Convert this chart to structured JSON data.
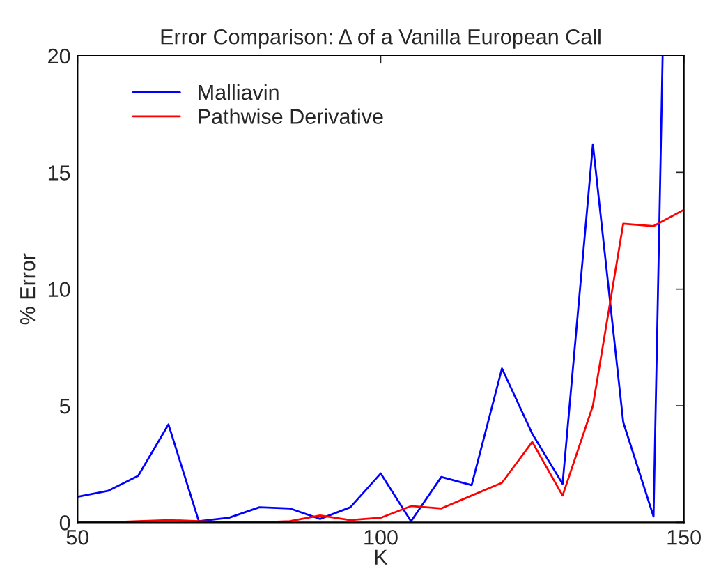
{
  "chart_data": {
    "type": "line",
    "title": "Error Comparison: Δ of a Vanilla European Call",
    "xlabel": "K",
    "ylabel": "% Error",
    "x": [
      50,
      55,
      60,
      65,
      70,
      75,
      80,
      85,
      90,
      95,
      100,
      105,
      110,
      115,
      120,
      125,
      130,
      135,
      140,
      145,
      150
    ],
    "series": [
      {
        "name": "Malliavin",
        "color": "#0000ff",
        "x": [
          50,
          55,
          60,
          65,
          70,
          75,
          80,
          85,
          90,
          95,
          100,
          105,
          110,
          115,
          120,
          125,
          130,
          135,
          140,
          145,
          146.5
        ],
        "values": [
          1.1,
          1.35,
          2.0,
          4.2,
          0.05,
          0.2,
          0.65,
          0.6,
          0.15,
          0.65,
          2.1,
          0.05,
          1.95,
          1.6,
          6.6,
          3.8,
          1.65,
          16.2,
          4.3,
          0.25,
          20
        ]
      },
      {
        "name": "Pathwise Derivative",
        "color": "#ff0000",
        "values": [
          0,
          0,
          0.05,
          0.1,
          0.05,
          0,
          0,
          0.05,
          0.3,
          0.1,
          0.2,
          0.7,
          0.6,
          1.15,
          1.7,
          3.45,
          1.15,
          5.0,
          12.8,
          12.7,
          13.4
        ]
      }
    ],
    "xlim": [
      50,
      150
    ],
    "xticks": [
      50,
      100,
      150
    ],
    "ylim": [
      0,
      20
    ],
    "yticks": [
      0,
      5,
      10,
      15,
      20
    ],
    "grid": false,
    "legend": "top left",
    "marker": "none",
    "line_style": "solid"
  }
}
